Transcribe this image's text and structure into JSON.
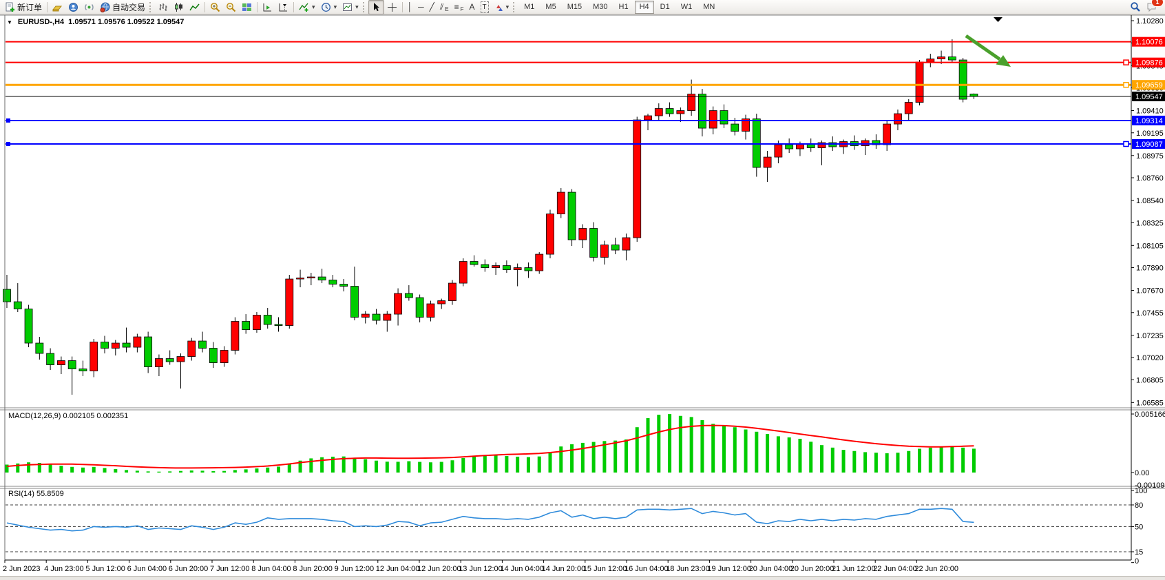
{
  "toolbar": {
    "new_order_label": "新订单",
    "autotrading_label": "自动交易",
    "badge_count": "1",
    "timeframes": [
      "M1",
      "M5",
      "M15",
      "M30",
      "H1",
      "H4",
      "D1",
      "W1",
      "MN"
    ],
    "active_timeframe": "H4",
    "glyphs": {
      "collapse": "▼",
      "vline": "│",
      "hline": "─",
      "trend": "╱",
      "channel": "⫽",
      "channel_sub": "E",
      "fibo": "≡",
      "fibo_sub": "F",
      "text_tool": "A",
      "label_tool": "T",
      "dropdown": "▾"
    }
  },
  "chart": {
    "title_symbol": "EURUSD-,H4",
    "title_ohlc": "1.09571 1.09576 1.09522 1.09547",
    "macd_label": "MACD(12,26,9) 0.002105 0.002351",
    "rsi_label": "RSI(14) 55.8509"
  },
  "price_axis": {
    "ticks": [
      "1.10280",
      "1.10065",
      "1.09845",
      "1.09630",
      "1.09410",
      "1.09195",
      "1.08975",
      "1.08760",
      "1.08540",
      "1.08325",
      "1.08105",
      "1.07890",
      "1.07670",
      "1.07455",
      "1.07235",
      "1.07020",
      "1.06805",
      "1.06585"
    ]
  },
  "time_axis": {
    "labels": [
      "2 Jun 2023",
      "4 Jun 23:00",
      "5 Jun 12:00",
      "6 Jun 04:00",
      "6 Jun 20:00",
      "7 Jun 12:00",
      "8 Jun 04:00",
      "8 Jun 20:00",
      "9 Jun 12:00",
      "12 Jun 04:00",
      "12 Jun 20:00",
      "13 Jun 12:00",
      "14 Jun 04:00",
      "14 Jun 20:00",
      "15 Jun 12:00",
      "16 Jun 04:00",
      "18 Jun 23:00",
      "19 Jun 12:00",
      "20 Jun 04:00",
      "20 Jun 20:00",
      "21 Jun 12:00",
      "22 Jun 04:00",
      "22 Jun 20:00"
    ]
  },
  "macd_axis": {
    "labels": [
      "0.005166",
      "0.00",
      "-0.001095"
    ]
  },
  "rsi_axis": {
    "labels": [
      "100",
      "80",
      "50",
      "15",
      "0"
    ]
  },
  "chart_data": {
    "type": "candlestick",
    "symbol": "EURUSD-",
    "timeframe": "H4",
    "title": "EURUSD-,H4 1.09571 1.09576 1.09522 1.09547",
    "ylim": [
      1.06585,
      1.1028
    ],
    "grid": false,
    "colors": {
      "bull": "#FF0000",
      "bear": "#00CC00",
      "wick": "#000000",
      "macd_hist": "#00CC00",
      "macd_signal": "#FF0000",
      "rsi_line": "#2F8BDB"
    },
    "last_ohlc": {
      "open": 1.09571,
      "high": 1.09576,
      "low": 1.09522,
      "close": 1.09547
    },
    "candles": [
      [
        1.0768,
        1.0782,
        1.075,
        1.0756
      ],
      [
        1.0756,
        1.0774,
        1.0746,
        1.0749
      ],
      [
        1.0749,
        1.0753,
        1.0712,
        1.0716
      ],
      [
        1.0716,
        1.0722,
        1.07,
        1.0706
      ],
      [
        1.0706,
        1.0711,
        1.069,
        1.0695
      ],
      [
        1.0695,
        1.0703,
        1.0686,
        1.0699
      ],
      [
        1.0699,
        1.0703,
        1.0666,
        1.0691
      ],
      [
        1.0691,
        1.0699,
        1.0684,
        1.0689
      ],
      [
        1.0689,
        1.072,
        1.0683,
        1.0717
      ],
      [
        1.0717,
        1.0723,
        1.0706,
        1.0711
      ],
      [
        1.0711,
        1.0719,
        1.0704,
        1.0716
      ],
      [
        1.0716,
        1.0731,
        1.0707,
        1.0712
      ],
      [
        1.0712,
        1.0725,
        1.0707,
        1.0722
      ],
      [
        1.0722,
        1.0727,
        1.0687,
        1.0693
      ],
      [
        1.0693,
        1.0705,
        1.0684,
        1.0701
      ],
      [
        1.0701,
        1.0709,
        1.0695,
        1.0698
      ],
      [
        1.0698,
        1.0706,
        1.0672,
        1.0703
      ],
      [
        1.0703,
        1.0721,
        1.0699,
        1.0718
      ],
      [
        1.0718,
        1.0727,
        1.0707,
        1.0711
      ],
      [
        1.0711,
        1.0717,
        1.0692,
        1.0697
      ],
      [
        1.0697,
        1.0713,
        1.0693,
        1.0709
      ],
      [
        1.0709,
        1.0741,
        1.0705,
        1.0737
      ],
      [
        1.0737,
        1.0744,
        1.0725,
        1.0729
      ],
      [
        1.0729,
        1.0746,
        1.0726,
        1.0743
      ],
      [
        1.0743,
        1.075,
        1.073,
        1.0734
      ],
      [
        1.0734,
        1.0741,
        1.0727,
        1.0733
      ],
      [
        1.0733,
        1.0782,
        1.073,
        1.0778
      ],
      [
        1.0778,
        1.0787,
        1.077,
        1.0779
      ],
      [
        1.0779,
        1.0784,
        1.0772,
        1.078
      ],
      [
        1.078,
        1.0788,
        1.0774,
        1.0777
      ],
      [
        1.0777,
        1.0782,
        1.077,
        1.0773
      ],
      [
        1.0773,
        1.0778,
        1.0766,
        1.0771
      ],
      [
        1.0771,
        1.079,
        1.0738,
        1.0741
      ],
      [
        1.0741,
        1.0747,
        1.0735,
        1.0744
      ],
      [
        1.0744,
        1.0749,
        1.0734,
        1.0738
      ],
      [
        1.0738,
        1.0747,
        1.0727,
        1.0744
      ],
      [
        1.0744,
        1.0769,
        1.0733,
        1.0764
      ],
      [
        1.0764,
        1.0772,
        1.0757,
        1.076
      ],
      [
        1.076,
        1.0763,
        1.0736,
        1.0741
      ],
      [
        1.0741,
        1.0757,
        1.0737,
        1.0754
      ],
      [
        1.0754,
        1.0759,
        1.0749,
        1.0757
      ],
      [
        1.0757,
        1.0777,
        1.0753,
        1.0774
      ],
      [
        1.0774,
        1.0798,
        1.0771,
        1.0795
      ],
      [
        1.0795,
        1.0801,
        1.079,
        1.0792
      ],
      [
        1.0792,
        1.0797,
        1.0785,
        1.0789
      ],
      [
        1.0789,
        1.0794,
        1.0782,
        1.0791
      ],
      [
        1.0791,
        1.0796,
        1.0784,
        1.0787
      ],
      [
        1.0787,
        1.0793,
        1.0771,
        1.0789
      ],
      [
        1.0789,
        1.0794,
        1.0779,
        1.0786
      ],
      [
        1.0786,
        1.0804,
        1.0783,
        1.0802
      ],
      [
        1.0802,
        1.0845,
        1.0798,
        1.0841
      ],
      [
        1.0841,
        1.0866,
        1.0837,
        1.0862
      ],
      [
        1.0862,
        1.0865,
        1.081,
        1.0816
      ],
      [
        1.0816,
        1.0831,
        1.0808,
        1.0827
      ],
      [
        1.0827,
        1.0833,
        1.0795,
        1.0799
      ],
      [
        1.0799,
        1.0815,
        1.0792,
        1.0811
      ],
      [
        1.0811,
        1.0818,
        1.0802,
        1.0806
      ],
      [
        1.0806,
        1.0822,
        1.0796,
        1.0818
      ],
      [
        1.0818,
        1.0935,
        1.0814,
        1.0932
      ],
      [
        1.0932,
        1.0938,
        1.0922,
        1.0936
      ],
      [
        1.0936,
        1.0948,
        1.0931,
        1.0943
      ],
      [
        1.0943,
        1.0949,
        1.0935,
        1.0938
      ],
      [
        1.0938,
        1.0944,
        1.093,
        1.0941
      ],
      [
        1.0941,
        1.0971,
        1.0936,
        1.0957
      ],
      [
        1.0957,
        1.0962,
        1.0916,
        1.0924
      ],
      [
        1.0924,
        1.0945,
        1.0918,
        1.0941
      ],
      [
        1.0941,
        1.0947,
        1.0924,
        1.0928
      ],
      [
        1.0928,
        1.0934,
        1.0917,
        1.0921
      ],
      [
        1.0921,
        1.0937,
        1.0913,
        1.0933
      ],
      [
        1.0933,
        1.0938,
        1.0877,
        1.0886
      ],
      [
        1.0886,
        1.0902,
        1.0872,
        1.0896
      ],
      [
        1.0896,
        1.0912,
        1.089,
        1.0908
      ],
      [
        1.0908,
        1.0914,
        1.09,
        1.0904
      ],
      [
        1.0904,
        1.0911,
        1.0897,
        1.0909
      ],
      [
        1.0909,
        1.0914,
        1.0901,
        1.0905
      ],
      [
        1.0905,
        1.0912,
        1.0888,
        1.091
      ],
      [
        1.091,
        1.0916,
        1.0902,
        1.0906
      ],
      [
        1.0906,
        1.0913,
        1.0899,
        1.0911
      ],
      [
        1.0911,
        1.0917,
        1.0903,
        1.0907
      ],
      [
        1.0907,
        1.0914,
        1.0898,
        1.0912
      ],
      [
        1.0912,
        1.0918,
        1.0904,
        1.0908
      ],
      [
        1.0908,
        1.0932,
        1.0902,
        1.0928
      ],
      [
        1.0928,
        1.0942,
        1.0922,
        1.0938
      ],
      [
        1.0938,
        1.0952,
        1.0931,
        1.0949
      ],
      [
        1.0949,
        1.099,
        1.0946,
        1.0988
      ],
      [
        1.0988,
        1.0996,
        1.0983,
        1.0991
      ],
      [
        1.0991,
        1.0999,
        1.0986,
        1.0993
      ],
      [
        1.0993,
        1.101,
        1.0987,
        1.099
      ],
      [
        1.099,
        1.0992,
        1.0949,
        1.0952
      ],
      [
        1.09571,
        1.09576,
        1.09522,
        1.09547
      ]
    ],
    "hlines": [
      {
        "price": 1.10076,
        "label": "1.10076",
        "color": "#FF0000",
        "width": 2,
        "left_handle": false,
        "right_handle": false
      },
      {
        "price": 1.09876,
        "label": "1.09876",
        "color": "#FF0000",
        "width": 2,
        "left_handle": false,
        "right_handle": true
      },
      {
        "price": 1.09659,
        "label": "1.09659",
        "color": "#FFA500",
        "width": 3,
        "left_handle": false,
        "right_handle": true
      },
      {
        "price": 1.09314,
        "label": "1.09314",
        "color": "#0000FF",
        "width": 2,
        "left_handle": true,
        "right_handle": false
      },
      {
        "price": 1.09087,
        "label": "1.09087",
        "color": "#0000FF",
        "width": 2,
        "left_handle": true,
        "right_handle": true
      }
    ],
    "current_price": {
      "value": 1.09547,
      "label": "1.09547",
      "line_color": "#000000",
      "label_bg": "#000000"
    },
    "indicators": {
      "macd": {
        "name": "MACD",
        "params": [
          12,
          26,
          9
        ],
        "value_main": 0.002105,
        "value_signal": 0.002351,
        "axis_max": 0.005166,
        "axis_min": -0.001095,
        "histogram": [
          0.0007,
          0.0008,
          0.0009,
          0.00085,
          0.00072,
          0.0006,
          0.0005,
          0.00044,
          0.0005,
          0.0004,
          0.0003,
          0.00022,
          0.00016,
          0.0001,
          8e-05,
          0.0001,
          0.00014,
          0.00018,
          0.00016,
          0.00012,
          0.00014,
          0.00022,
          0.00028,
          0.00036,
          0.00044,
          0.00052,
          0.0008,
          0.00105,
          0.00125,
          0.00135,
          0.0014,
          0.00142,
          0.0013,
          0.00118,
          0.00105,
          0.00096,
          0.00095,
          0.001,
          0.00094,
          0.0009,
          0.00094,
          0.00108,
          0.00128,
          0.00148,
          0.00155,
          0.00152,
          0.00146,
          0.0014,
          0.00136,
          0.00142,
          0.0018,
          0.0023,
          0.0025,
          0.00262,
          0.0027,
          0.00278,
          0.00282,
          0.00292,
          0.004,
          0.0048,
          0.0051,
          0.00516,
          0.005,
          0.0049,
          0.00462,
          0.0043,
          0.00418,
          0.004,
          0.0038,
          0.0036,
          0.0034,
          0.0032,
          0.0031,
          0.00298,
          0.00272,
          0.00242,
          0.0022,
          0.002,
          0.0019,
          0.0018,
          0.00175,
          0.0017,
          0.00175,
          0.0019,
          0.0021,
          0.0022,
          0.0023,
          0.00235,
          0.0022,
          0.002105
        ],
        "signal": [
          0.00055,
          0.00062,
          0.00068,
          0.00072,
          0.00074,
          0.00075,
          0.00074,
          0.00072,
          0.00068,
          0.00064,
          0.0006,
          0.00055,
          0.0005,
          0.00046,
          0.00043,
          0.00041,
          0.0004,
          0.0004,
          0.00041,
          0.00042,
          0.00043,
          0.00045,
          0.00048,
          0.00052,
          0.00058,
          0.00066,
          0.00076,
          0.00088,
          0.00098,
          0.00108,
          0.00116,
          0.00122,
          0.00126,
          0.00128,
          0.00128,
          0.00127,
          0.00126,
          0.00126,
          0.00127,
          0.00128,
          0.0013,
          0.00133,
          0.00138,
          0.00144,
          0.0015,
          0.00155,
          0.00159,
          0.00162,
          0.00165,
          0.00169,
          0.00176,
          0.00186,
          0.00198,
          0.00212,
          0.00228,
          0.00245,
          0.00262,
          0.0028,
          0.00305,
          0.00332,
          0.00358,
          0.0038,
          0.00397,
          0.00408,
          0.00414,
          0.00416,
          0.00414,
          0.00409,
          0.00401,
          0.00391,
          0.00379,
          0.00366,
          0.00353,
          0.0034,
          0.00327,
          0.00314,
          0.00301,
          0.00288,
          0.00276,
          0.00265,
          0.00255,
          0.00246,
          0.00239,
          0.00233,
          0.00229,
          0.00227,
          0.00227,
          0.00229,
          0.00232,
          0.002351
        ]
      },
      "rsi": {
        "name": "RSI",
        "period": 14,
        "last": 55.8509,
        "range": [
          0,
          100
        ],
        "levels": [
          80,
          50,
          15
        ],
        "values": [
          55,
          52,
          49,
          47,
          45,
          46,
          44,
          45,
          50,
          49,
          50,
          49,
          51,
          46,
          48,
          47,
          46,
          51,
          49,
          46,
          49,
          55,
          53,
          56,
          62,
          60,
          61,
          61,
          61,
          60,
          58,
          57,
          50,
          51,
          50,
          52,
          57,
          56,
          51,
          55,
          56,
          60,
          64,
          62,
          61,
          61,
          60,
          61,
          60,
          63,
          69,
          72,
          63,
          66,
          61,
          63,
          61,
          63,
          73,
          74,
          74,
          73,
          74,
          75,
          68,
          71,
          69,
          66,
          68,
          56,
          54,
          58,
          57,
          60,
          58,
          60,
          58,
          60,
          59,
          61,
          60,
          64,
          66,
          68,
          74,
          74,
          75,
          74,
          57,
          55.85
        ]
      }
    },
    "annotations": {
      "arrow": {
        "type": "trend-arrow",
        "direction": "down-right",
        "color": "#4AA02C",
        "from_price": 1.1005,
        "to_price": 1.0975
      },
      "shift_marker": true
    }
  }
}
